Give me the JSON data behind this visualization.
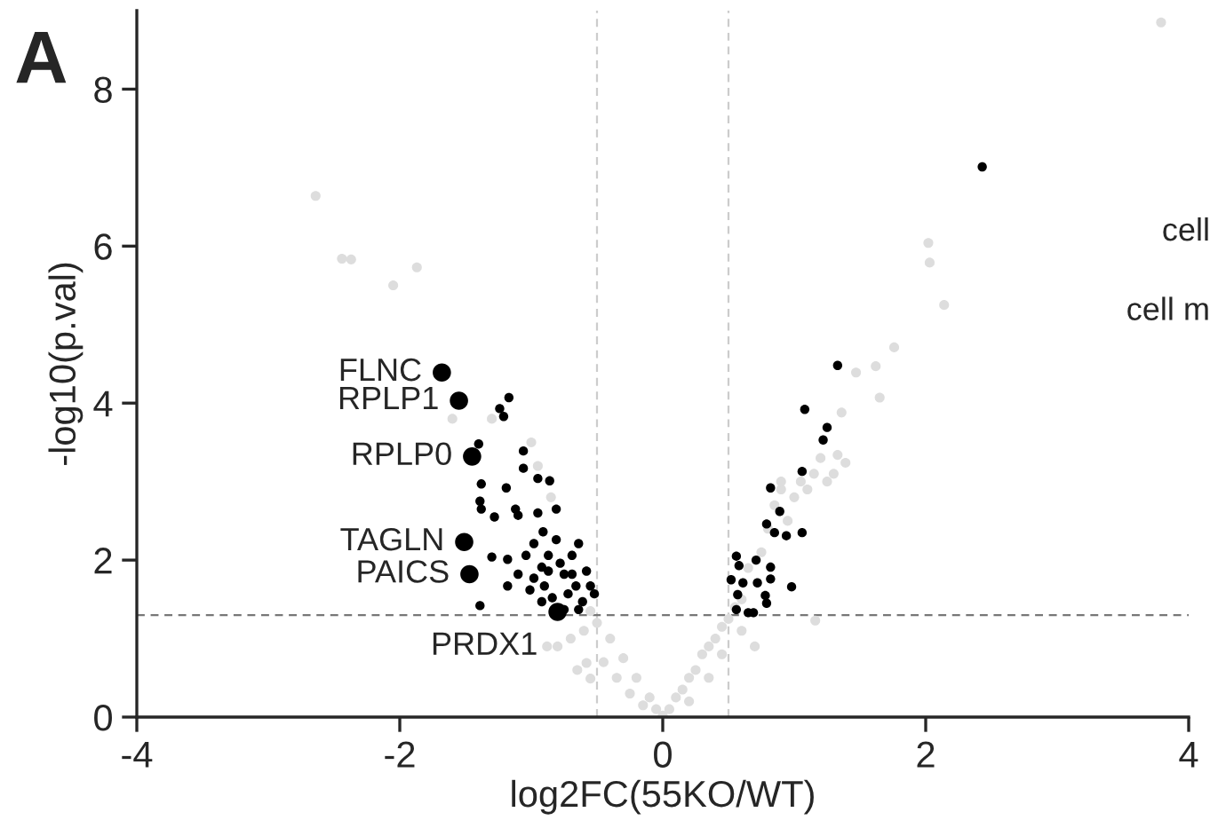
{
  "chart_data": {
    "type": "scatter",
    "xlabel": "log2FC(55KO/WT)",
    "ylabel": "-log10(p.val)",
    "xlim": [
      -4,
      4
    ],
    "ylim": [
      0,
      9
    ],
    "xticks": [
      -4,
      -2,
      0,
      2,
      4
    ],
    "yticks": [
      0,
      2,
      4,
      6,
      8
    ],
    "grid": false,
    "legend": false,
    "marker": "circle",
    "series": [
      {
        "color": "#dddddd",
        "x": [
          -2.64,
          -2.44,
          -2.37,
          -1.87,
          -2.05,
          3.79,
          2.02,
          2.03,
          2.14,
          1.76,
          1.62,
          1.65,
          1.47,
          1.36,
          1.39,
          1.33,
          1.16,
          0.1,
          0.2,
          0.25,
          0.3,
          0.35,
          0.4,
          0.45,
          0.5,
          0.55,
          0.6,
          0.6,
          0.7,
          0.65,
          0.75,
          0.8,
          0.85,
          0.9,
          0.95,
          1.0,
          1.05,
          1.1,
          1.15,
          1.2,
          1.25,
          1.3,
          0.9,
          0.35,
          0.2,
          0.15,
          0.45,
          -0.1,
          -0.2,
          -0.3,
          -0.4,
          -0.5,
          -0.55,
          -0.6,
          -0.7,
          -0.8,
          -0.65,
          -0.45,
          -0.35,
          -0.25,
          -0.15,
          -0.88,
          -0.55,
          -0.58,
          -1.3,
          -1.0,
          -0.95,
          -0.85,
          -1.6,
          0,
          0.05,
          -0.05
        ],
        "values": [
          6.64,
          5.84,
          5.83,
          5.73,
          5.5,
          8.85,
          6.04,
          5.79,
          5.25,
          4.71,
          4.47,
          4.07,
          4.39,
          3.88,
          3.24,
          3.34,
          1.23,
          0.25,
          0.5,
          0.6,
          0.8,
          0.9,
          1.0,
          1.15,
          1.25,
          1.4,
          1.5,
          1.1,
          0.9,
          1.9,
          2.1,
          2.4,
          2.7,
          2.9,
          2.5,
          2.8,
          3.0,
          2.9,
          3.1,
          3.3,
          3.0,
          3.1,
          3.0,
          0.5,
          0.2,
          0.35,
          0.8,
          0.25,
          0.5,
          0.75,
          1.0,
          1.2,
          1.35,
          1.1,
          1.0,
          0.9,
          0.6,
          0.7,
          0.5,
          0.3,
          0.15,
          0.9,
          0.49,
          0.69,
          3.8,
          3.5,
          3.2,
          2.8,
          3.8,
          0.02,
          0.1,
          0.1
        ]
      },
      {
        "color": "#000000",
        "x": [
          -1.17,
          -1.24,
          -1.21,
          -1.4,
          -1.06,
          -1.38,
          -1.19,
          -0.95,
          -0.86,
          -1.06,
          -1.39,
          -1.38,
          -1.28,
          -1.12,
          -1.1,
          -0.95,
          -0.81,
          -0.91,
          -0.98,
          -1.04,
          -1.18,
          -1.3,
          -1.1,
          -1.18,
          -0.98,
          -0.87,
          -0.78,
          -0.69,
          -0.64,
          -0.58,
          -0.55,
          -0.61,
          -0.72,
          -0.84,
          -0.92,
          -0.75,
          -0.66,
          -0.75,
          -0.87,
          -0.92,
          -1.01,
          -1.39,
          -0.52,
          -0.64,
          -0.81,
          -0.9,
          -0.69,
          2.43,
          1.33,
          1.08,
          1.25,
          1.22,
          1.06,
          0.82,
          0.89,
          0.79,
          0.85,
          0.94,
          1.06,
          0.56,
          0.58,
          0.71,
          0.82,
          0.52,
          0.61,
          0.82,
          0.72,
          0.98,
          0.57,
          0.78,
          0.65,
          0.69,
          0.56,
          0.79
        ],
        "values": [
          4.07,
          3.93,
          3.83,
          3.48,
          3.39,
          2.97,
          2.92,
          3.04,
          3.01,
          3.17,
          2.75,
          2.65,
          2.55,
          2.65,
          2.57,
          2.6,
          2.65,
          2.36,
          2.21,
          2.06,
          2.01,
          2.04,
          1.82,
          1.67,
          1.77,
          1.86,
          1.96,
          2.06,
          2.21,
          1.86,
          1.67,
          1.47,
          1.57,
          1.52,
          1.47,
          1.37,
          1.67,
          1.82,
          2.06,
          1.91,
          1.62,
          1.42,
          1.57,
          1.37,
          2.26,
          1.67,
          1.82,
          7.01,
          4.48,
          3.92,
          3.69,
          3.53,
          3.13,
          2.92,
          2.62,
          2.46,
          2.35,
          2.31,
          2.35,
          2.05,
          1.93,
          2.0,
          1.91,
          1.75,
          1.71,
          1.76,
          1.71,
          1.66,
          1.56,
          1.55,
          1.33,
          1.33,
          1.37,
          1.45
        ]
      },
      {
        "color": "#000000",
        "x": [
          -1.68,
          -1.55,
          -1.45,
          -1.51,
          -1.47,
          -0.8
        ],
        "values": [
          4.39,
          4.03,
          3.32,
          2.23,
          1.82,
          1.34
        ]
      }
    ],
    "ref_lines": [
      {
        "axis": "x",
        "value": -0.5,
        "color": "#cccccc",
        "line_style": "dashed"
      },
      {
        "axis": "x",
        "value": 0.5,
        "color": "#cccccc",
        "line_style": "dashed"
      },
      {
        "axis": "y",
        "value": 1.3,
        "color": "#777777",
        "line_style": "dashed"
      }
    ],
    "annotations": [
      "A",
      "cell",
      "cell m",
      {
        "text": "FLNC",
        "x": -1.68,
        "y": 4.39
      },
      {
        "text": "RPLP1",
        "x": -1.55,
        "y": 4.03
      },
      {
        "text": "RPLP0",
        "x": -1.45,
        "y": 3.32
      },
      {
        "text": "TAGLN",
        "x": -1.51,
        "y": 2.23
      },
      {
        "text": "PAICS",
        "x": -1.47,
        "y": 1.82
      },
      {
        "text": "PRDX1",
        "x": -0.8,
        "y": 1.34
      }
    ]
  }
}
